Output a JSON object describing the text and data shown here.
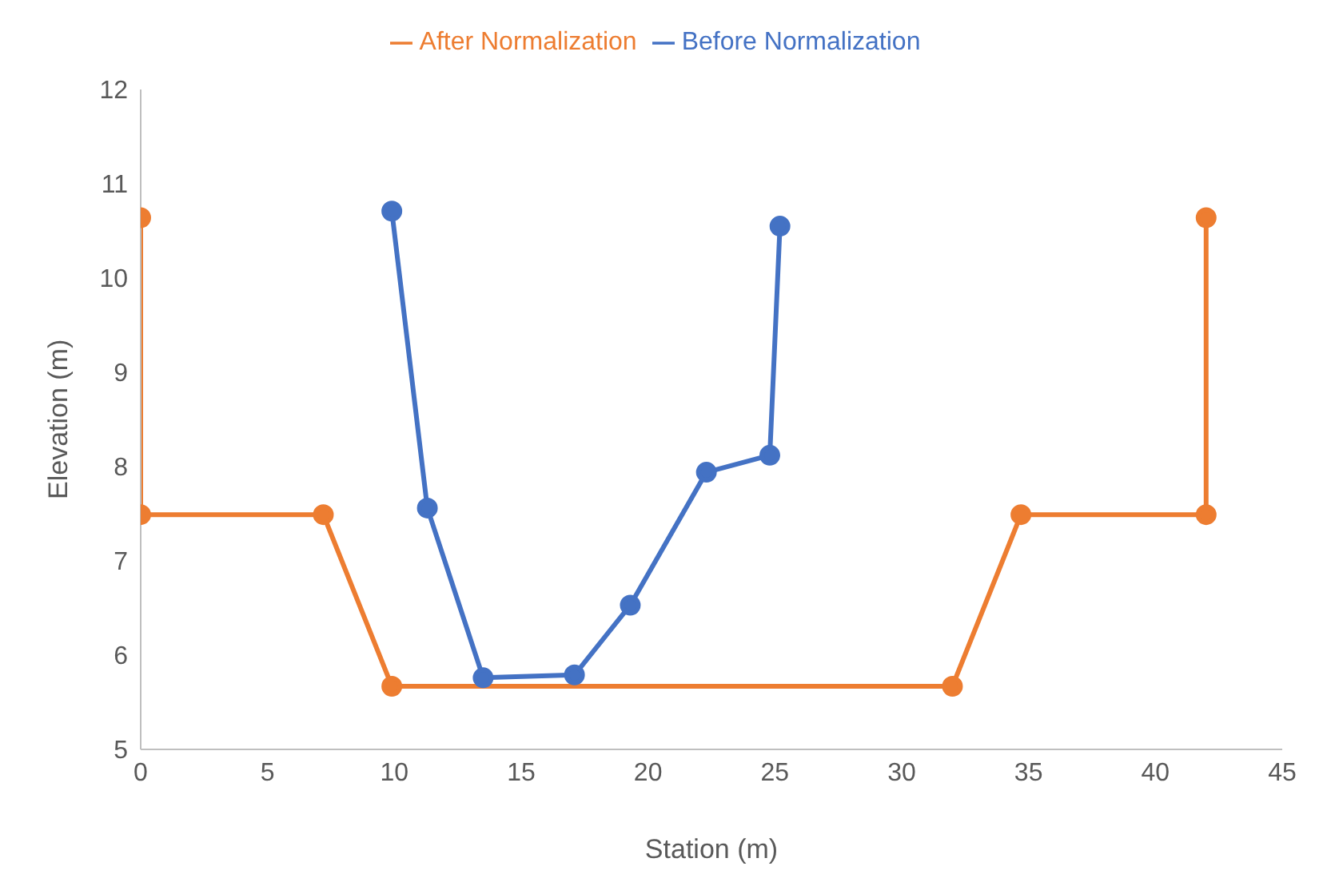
{
  "chart_data": {
    "type": "line",
    "xlabel": "Station (m)",
    "ylabel": "Elevation (m)",
    "xlim": [
      0,
      45
    ],
    "xticks": [
      0,
      5,
      10,
      15,
      20,
      25,
      30,
      35,
      40,
      45
    ],
    "ylim": [
      5,
      12
    ],
    "yticks": [
      5,
      6,
      7,
      8,
      9,
      10,
      11,
      12
    ],
    "grid": false,
    "legend": "top",
    "marker": "circle",
    "line_style": "solid",
    "series": [
      {
        "name": "Before Normalization",
        "color": "#4472c4",
        "x": [
          9.9,
          11.3,
          13.5,
          17.1,
          19.3,
          22.3,
          24.8,
          25.2
        ],
        "values": [
          10.71,
          7.56,
          5.76,
          5.79,
          6.53,
          7.94,
          8.12,
          10.55
        ]
      },
      {
        "name": "After Normalization",
        "color": "#ed7d31",
        "x": [
          0,
          0,
          7.2,
          9.9,
          32.0,
          34.7,
          42.0,
          42.0
        ],
        "values": [
          10.64,
          7.49,
          7.49,
          5.67,
          5.67,
          7.49,
          7.49,
          10.64
        ]
      }
    ]
  }
}
